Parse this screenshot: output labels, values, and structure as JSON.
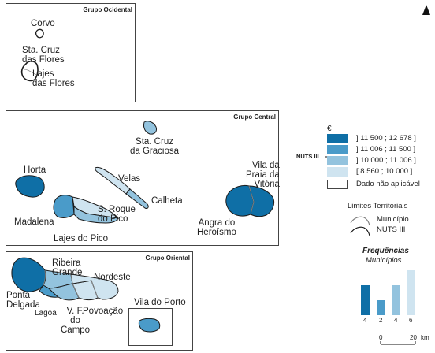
{
  "groups": {
    "ocidental": "Grupo Ocidental",
    "central": "Grupo Central",
    "oriental": "Grupo Oriental"
  },
  "places": {
    "corvo": "Corvo",
    "flores_cruz": "Sta. Cruz\ndas Flores",
    "flores_lajes": "Lajes\ndas Flores",
    "graciosa": "Sta. Cruz\nda Graciosa",
    "horta": "Horta",
    "velas": "Velas",
    "calheta": "Calheta",
    "praia": "Vila da\nPraia da\nVitória",
    "sroque": "S. Roque\ndo Pico",
    "madalena": "Madalena",
    "lajes_pico": "Lajes do Pico",
    "angra": "Angra do\nHeroísmo",
    "ribeira": "Ribeira\nGrande",
    "nordeste": "Nordeste",
    "ponta": "Ponta\nDelgada",
    "lagoa": "Lagoa",
    "vfcampo": "V. F.\ndo\nCampo",
    "povoacao": "Povoação",
    "vporto": "Vila do Porto"
  },
  "colors": {
    "c1": "#0f6fa6",
    "c2": "#4a9bc9",
    "c3": "#93c3de",
    "c4": "#cfe4f0",
    "c5": "#ffffff",
    "outline": "#1b1b1b",
    "inner": "#8a8a8a"
  },
  "legend": {
    "currency": "€",
    "nuts_label": "NUTS III",
    "classes": [
      {
        "label": "] 11 500 ; 12 678 ]",
        "color": "#0f6fa6"
      },
      {
        "label": "] 11 006 ; 11 500 ]",
        "color": "#4a9bc9"
      },
      {
        "label": "] 10 000 ; 11 006 ]",
        "color": "#93c3de"
      },
      {
        "label": "[ 8 560 ; 10 000 ]",
        "color": "#cfe4f0"
      },
      {
        "label": "Dado não aplicável",
        "color": "#ffffff"
      }
    ],
    "limits_title": "Limites Territoriais",
    "limit_municipio": "Município",
    "limit_nuts": "NUTS III"
  },
  "frequencies": {
    "title": "Frequências",
    "subtitle": "Municípios",
    "counts": [
      4,
      2,
      4,
      6
    ]
  },
  "scale": {
    "start": "0",
    "end": "20",
    "unit": "km"
  },
  "north_icon": "north-arrow-icon"
}
